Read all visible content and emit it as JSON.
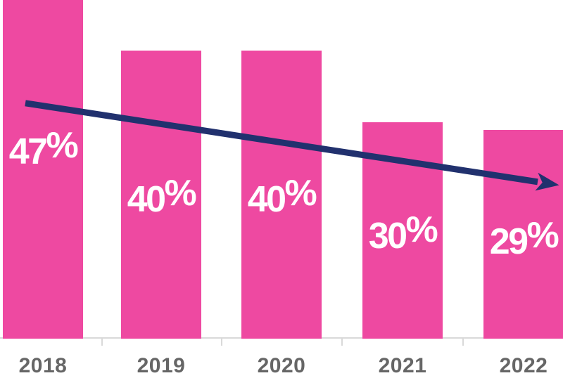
{
  "chart_data": {
    "type": "bar",
    "title": "",
    "categories": [
      "2018",
      "2019",
      "2020",
      "2021",
      "2022"
    ],
    "values": [
      47,
      40,
      40,
      30,
      29
    ],
    "data_labels": [
      "47%",
      "40%",
      "40%",
      "30%",
      "29%"
    ],
    "ylabel": "",
    "xlabel": "",
    "ylim": [
      0,
      47
    ],
    "grid": false,
    "legend": false,
    "trendline": {
      "shape": "straight-arrow",
      "direction": "declining",
      "start_value": 32.7,
      "end_value": 21.3
    },
    "colors": {
      "bar": "#ee49a1",
      "trend_arrow": "#21316e",
      "axis_line": "#d9d9d9",
      "data_label": "#ffffff",
      "category_label": "#666666"
    }
  }
}
